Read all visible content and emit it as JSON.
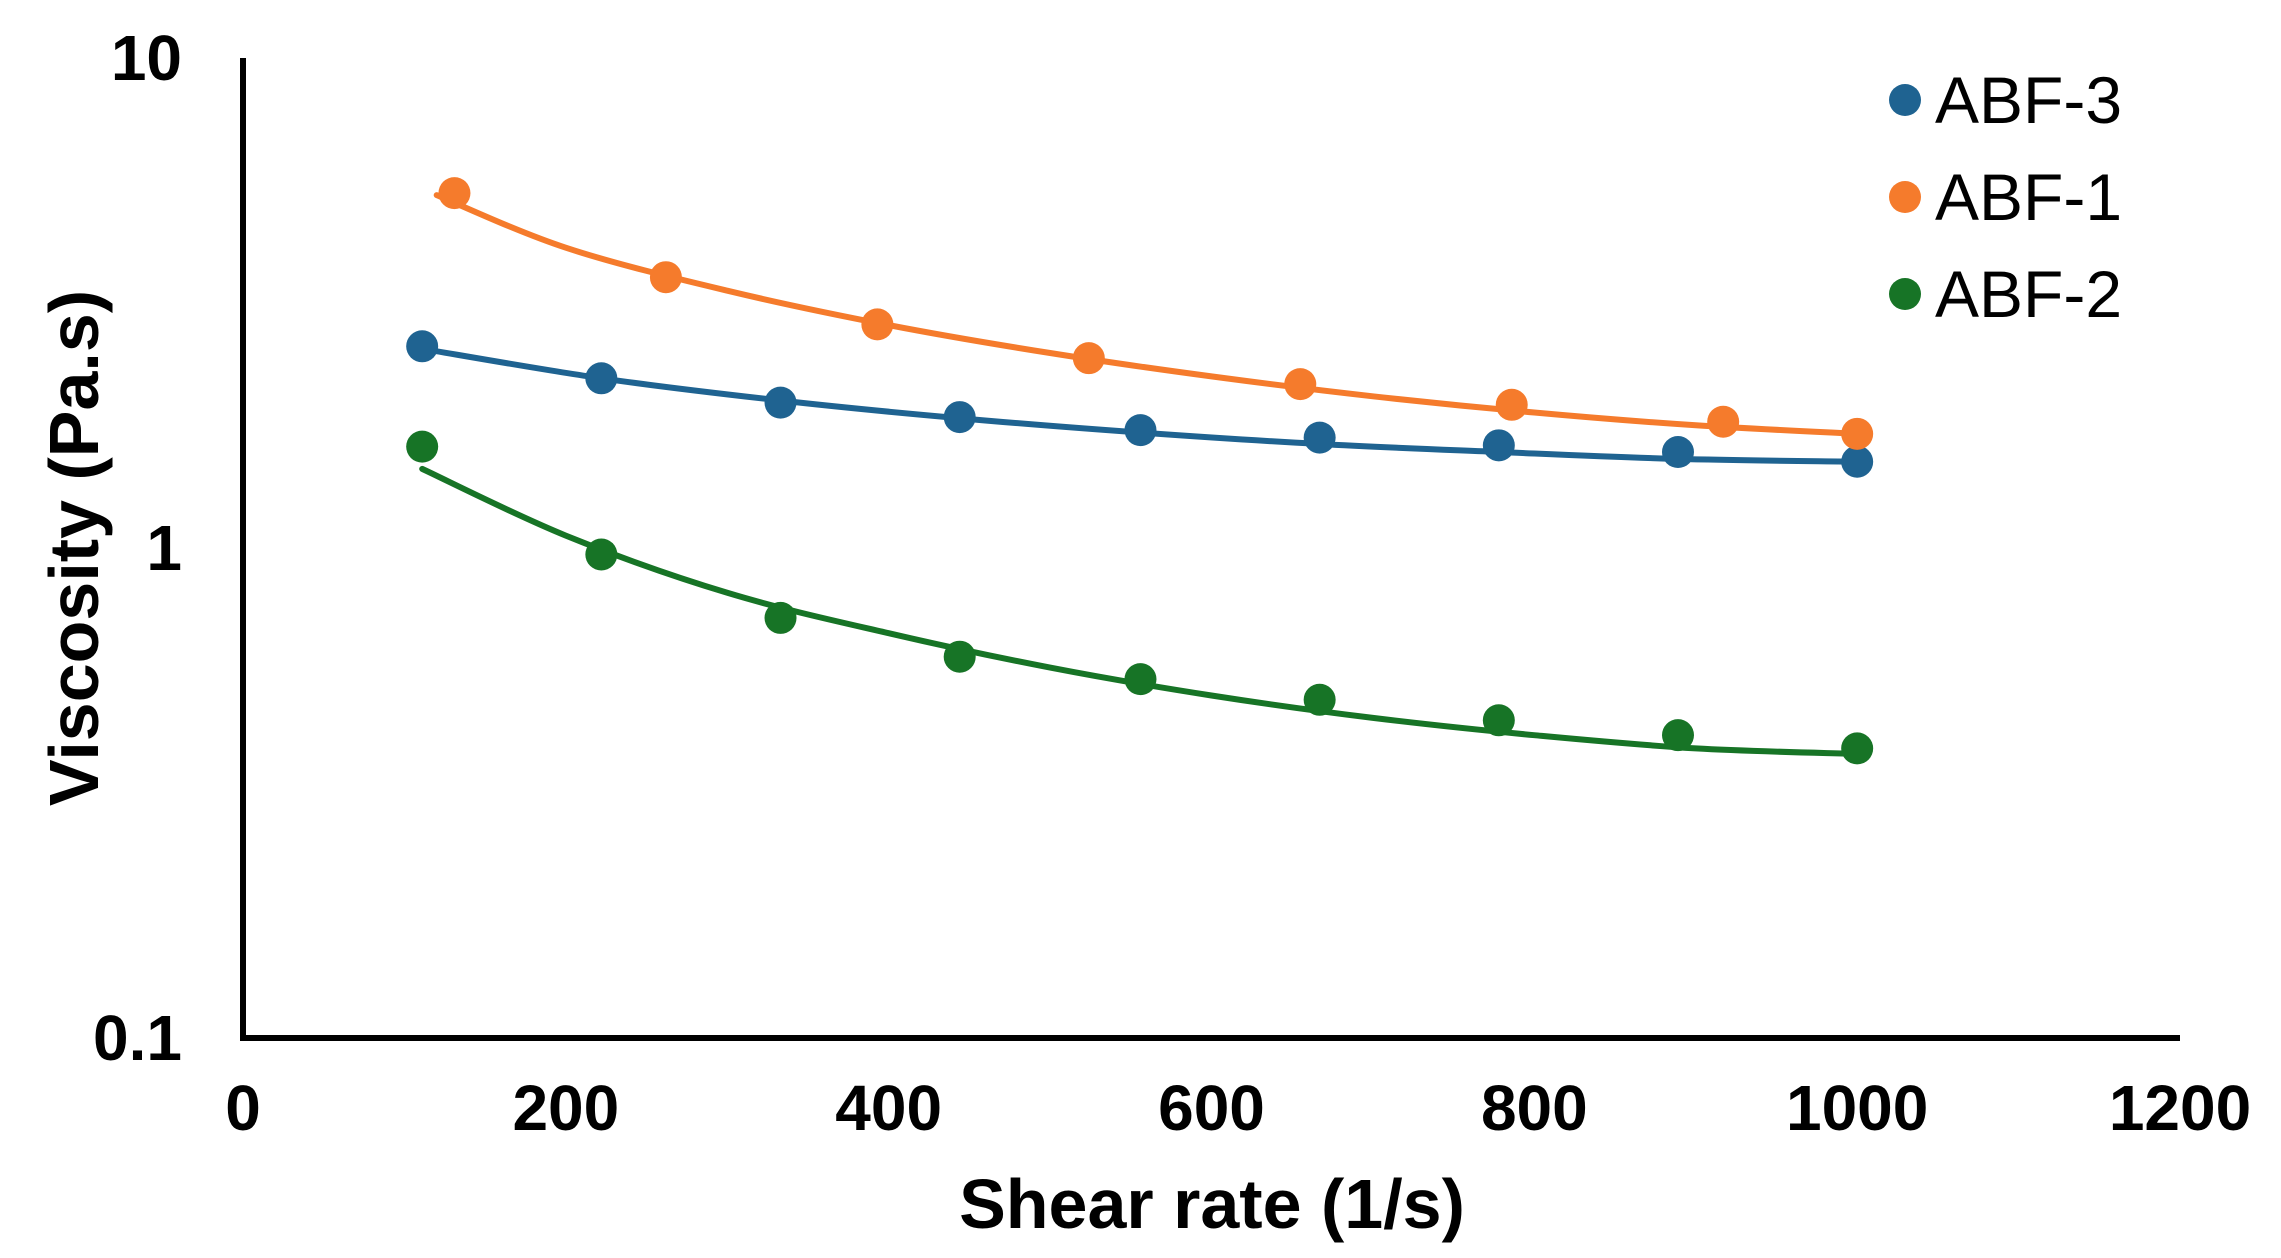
{
  "chart_data": {
    "type": "scatter",
    "title": "",
    "xlabel": "Shear rate (1/s)",
    "ylabel": "Viscosity (Pa.s)",
    "xlim": [
      0,
      1200
    ],
    "ylim": [
      0.1,
      10
    ],
    "yscale": "log",
    "x_ticks": [
      "0",
      "200",
      "400",
      "600",
      "800",
      "1000",
      "1200"
    ],
    "y_ticks": [
      "0.1",
      "1",
      "10"
    ],
    "legend_position": "top-right",
    "series": [
      {
        "name": "ABF-3",
        "color": "#1f6391",
        "points": [
          {
            "x": 111,
            "y": 2.58
          },
          {
            "x": 222,
            "y": 2.22
          },
          {
            "x": 333,
            "y": 1.98
          },
          {
            "x": 444,
            "y": 1.85
          },
          {
            "x": 556,
            "y": 1.74
          },
          {
            "x": 667,
            "y": 1.68
          },
          {
            "x": 778,
            "y": 1.62
          },
          {
            "x": 889,
            "y": 1.57
          },
          {
            "x": 1000,
            "y": 1.5
          }
        ],
        "fit": [
          {
            "x": 111,
            "y": 2.55
          },
          {
            "x": 222,
            "y": 2.22
          },
          {
            "x": 333,
            "y": 2.0
          },
          {
            "x": 444,
            "y": 1.84
          },
          {
            "x": 556,
            "y": 1.72
          },
          {
            "x": 667,
            "y": 1.63
          },
          {
            "x": 778,
            "y": 1.57
          },
          {
            "x": 889,
            "y": 1.52
          },
          {
            "x": 1000,
            "y": 1.5
          }
        ]
      },
      {
        "name": "ABF-1",
        "color": "#f57b2c",
        "points": [
          {
            "x": 131,
            "y": 5.3
          },
          {
            "x": 262,
            "y": 3.57
          },
          {
            "x": 393,
            "y": 2.86
          },
          {
            "x": 524,
            "y": 2.44
          },
          {
            "x": 655,
            "y": 2.16
          },
          {
            "x": 786,
            "y": 1.96
          },
          {
            "x": 917,
            "y": 1.81
          },
          {
            "x": 1000,
            "y": 1.71
          }
        ],
        "fit": [
          {
            "x": 120,
            "y": 5.25
          },
          {
            "x": 200,
            "y": 4.1
          },
          {
            "x": 300,
            "y": 3.35
          },
          {
            "x": 400,
            "y": 2.85
          },
          {
            "x": 500,
            "y": 2.5
          },
          {
            "x": 600,
            "y": 2.24
          },
          {
            "x": 700,
            "y": 2.04
          },
          {
            "x": 800,
            "y": 1.89
          },
          {
            "x": 900,
            "y": 1.78
          },
          {
            "x": 1000,
            "y": 1.71
          }
        ]
      },
      {
        "name": "ABF-2",
        "color": "#177426",
        "points": [
          {
            "x": 111,
            "y": 1.61
          },
          {
            "x": 222,
            "y": 0.97
          },
          {
            "x": 333,
            "y": 0.72
          },
          {
            "x": 444,
            "y": 0.6
          },
          {
            "x": 556,
            "y": 0.54
          },
          {
            "x": 667,
            "y": 0.49
          },
          {
            "x": 778,
            "y": 0.445
          },
          {
            "x": 889,
            "y": 0.415
          },
          {
            "x": 1000,
            "y": 0.39
          }
        ],
        "fit": [
          {
            "x": 111,
            "y": 1.45
          },
          {
            "x": 200,
            "y": 1.06
          },
          {
            "x": 300,
            "y": 0.81
          },
          {
            "x": 400,
            "y": 0.67
          },
          {
            "x": 500,
            "y": 0.57
          },
          {
            "x": 600,
            "y": 0.5
          },
          {
            "x": 700,
            "y": 0.45
          },
          {
            "x": 800,
            "y": 0.415
          },
          {
            "x": 900,
            "y": 0.39
          },
          {
            "x": 1000,
            "y": 0.38
          }
        ]
      }
    ]
  }
}
